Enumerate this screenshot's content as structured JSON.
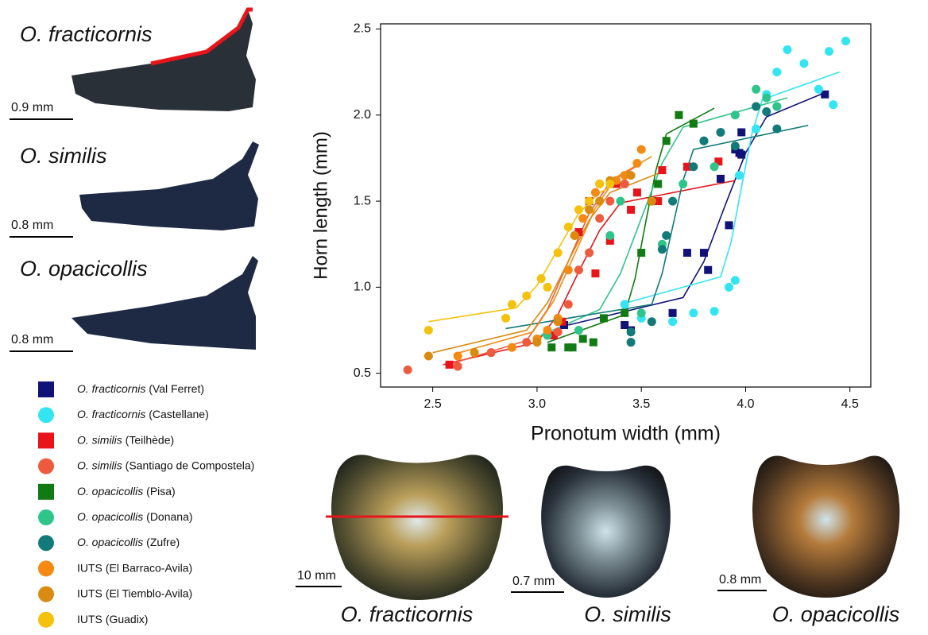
{
  "chart_data": {
    "type": "scatter",
    "xlabel": "Pronotum width (mm)",
    "ylabel": "Horn length (mm)",
    "xlim": [
      2.25,
      4.6
    ],
    "ylim": [
      0.42,
      2.53
    ],
    "xticks": [
      2.5,
      {
        "value": 3,
        "label": "3.0"
      },
      3.5,
      {
        "value": 4,
        "label": "4.0"
      },
      4.5
    ],
    "yticks": [
      {
        "value": 2.5,
        "label": "2.5"
      },
      {
        "value": 2,
        "label": "2.0"
      },
      {
        "value": 1.5,
        "label": "1.5"
      },
      {
        "value": 1,
        "label": "1.0"
      },
      {
        "value": 0.5,
        "label": "0.5"
      }
    ],
    "series": [
      {
        "name": "O. fracticornis",
        "site": "(Val Ferret)",
        "italic": true,
        "marker": "square",
        "color": "#10127a",
        "x": [
          3.13,
          3.42,
          3.45,
          3.65,
          3.72,
          3.8,
          3.82,
          3.88,
          3.92,
          3.95,
          3.97,
          3.98,
          4.38,
          3.98
        ],
        "values": [
          0.78,
          0.78,
          0.75,
          0.85,
          1.2,
          1.2,
          1.1,
          1.63,
          1.36,
          1.8,
          1.78,
          1.77,
          2.12,
          1.9
        ],
        "fit_x": [
          3.15,
          3.7,
          3.8,
          3.9,
          4.0,
          4.1,
          4.38
        ],
        "fit_values": [
          0.78,
          0.94,
          1.15,
          1.47,
          1.78,
          1.99,
          2.13
        ]
      },
      {
        "name": "O. fracticornis",
        "site": "(Castellane)",
        "italic": true,
        "marker": "circle",
        "color": "#33e5f0",
        "x": [
          3.42,
          3.5,
          3.65,
          3.75,
          3.85,
          3.92,
          3.95,
          3.97,
          4.05,
          4.1,
          4.15,
          4.2,
          4.28,
          4.35,
          4.4,
          4.42,
          4.48,
          4.15
        ],
        "values": [
          0.9,
          0.82,
          0.8,
          0.85,
          0.86,
          1.0,
          1.04,
          1.65,
          1.92,
          2.12,
          2.25,
          2.38,
          2.3,
          2.15,
          2.37,
          2.06,
          2.43,
          2.05
        ],
        "fit_x": [
          3.4,
          3.88,
          3.93,
          3.98,
          4.03,
          4.08,
          4.45
        ],
        "fit_values": [
          0.9,
          1.06,
          1.26,
          1.58,
          1.89,
          2.09,
          2.25
        ]
      },
      {
        "name": "O. similis",
        "site": "(Teilhède)",
        "italic": true,
        "marker": "square",
        "color": "#e8141a",
        "x": [
          2.58,
          3.08,
          3.12,
          3.2,
          3.25,
          3.28,
          3.35,
          3.38,
          3.45,
          3.48,
          3.6,
          3.72,
          3.87,
          3.58
        ],
        "values": [
          0.55,
          0.72,
          0.8,
          1.32,
          1.5,
          1.08,
          1.27,
          1.6,
          1.45,
          1.55,
          1.68,
          1.7,
          1.73,
          1.5
        ],
        "fit_x": [
          2.55,
          3.0,
          3.1,
          3.2,
          3.3,
          3.4,
          3.95
        ],
        "fit_values": [
          0.55,
          0.68,
          0.84,
          1.09,
          1.33,
          1.49,
          1.62
        ]
      },
      {
        "name": "O. similis",
        "site": "(Santiago de Compostela)",
        "italic": true,
        "marker": "circle",
        "color": "#ee5a3e",
        "x": [
          2.38,
          2.62,
          2.78,
          2.95,
          3.05,
          3.1,
          3.15,
          3.2,
          3.25,
          3.3,
          3.35,
          3.42
        ],
        "values": [
          0.52,
          0.54,
          0.62,
          0.68,
          0.72,
          0.74,
          0.9,
          1.1,
          1.2,
          1.4,
          1.5,
          1.6
        ],
        "fit_x": [
          2.6,
          2.95,
          3.05,
          3.15,
          3.25,
          3.35,
          3.5
        ],
        "fit_values": [
          0.56,
          0.69,
          0.87,
          1.15,
          1.43,
          1.61,
          1.72
        ]
      },
      {
        "name": "O. opacicollis",
        "site": "(Pisa)",
        "italic": true,
        "marker": "square",
        "color": "#127a12",
        "x": [
          3.07,
          3.15,
          3.17,
          3.22,
          3.27,
          3.32,
          3.42,
          3.5,
          3.55,
          3.58,
          3.62,
          3.68,
          3.75
        ],
        "values": [
          0.65,
          0.65,
          0.65,
          0.7,
          0.68,
          0.82,
          0.85,
          1.2,
          1.5,
          1.6,
          1.85,
          2.0,
          1.95
        ],
        "fit_x": [
          3.05,
          3.42,
          3.47,
          3.52,
          3.57,
          3.62,
          3.85
        ],
        "fit_values": [
          0.68,
          0.84,
          1.05,
          1.37,
          1.68,
          1.89,
          2.04
        ]
      },
      {
        "name": "O. opacicollis",
        "site": "(Donana)",
        "italic": true,
        "marker": "circle",
        "color": "#2fc48a",
        "x": [
          3.05,
          3.2,
          3.35,
          3.4,
          3.5,
          3.55,
          3.6,
          3.7,
          3.8,
          3.85,
          3.95,
          4.05,
          4.1,
          4.15
        ],
        "values": [
          0.72,
          0.75,
          1.3,
          1.5,
          0.85,
          1.5,
          1.25,
          1.6,
          1.85,
          1.7,
          2.0,
          2.15,
          2.1,
          2.05
        ],
        "fit_x": [
          3.0,
          3.3,
          3.4,
          3.5,
          3.6,
          3.7,
          4.2
        ],
        "fit_values": [
          0.71,
          0.87,
          1.08,
          1.4,
          1.72,
          1.93,
          2.1
        ]
      },
      {
        "name": "O. opacicollis",
        "site": "(Zufre)",
        "italic": true,
        "marker": "circle",
        "color": "#127a78",
        "x": [
          3.45,
          3.45,
          3.55,
          3.6,
          3.62,
          3.65,
          3.75,
          3.8,
          3.88,
          3.95,
          4.05,
          4.15,
          4.1
        ],
        "values": [
          0.68,
          0.74,
          0.8,
          1.22,
          1.3,
          1.5,
          1.7,
          1.85,
          1.9,
          1.82,
          2.05,
          1.92,
          2.02
        ],
        "fit_x": [
          2.85,
          3.55,
          3.6,
          3.65,
          3.7,
          3.75,
          4.3
        ],
        "fit_values": [
          0.76,
          0.9,
          1.08,
          1.35,
          1.62,
          1.8,
          1.94
        ]
      },
      {
        "name": "IUTS",
        "site": "(El Barraco-Avila)",
        "italic": false,
        "marker": "circle",
        "color": "#f58a12",
        "x": [
          2.62,
          2.88,
          3.0,
          3.05,
          3.1,
          3.15,
          3.18,
          3.22,
          3.28,
          3.3,
          3.38,
          3.42,
          3.48,
          3.5
        ],
        "values": [
          0.6,
          0.65,
          0.7,
          0.75,
          0.82,
          1.1,
          1.3,
          1.4,
          1.55,
          1.6,
          1.62,
          1.65,
          1.72,
          1.8
        ],
        "fit_x": [
          2.6,
          2.98,
          3.08,
          3.18,
          3.28,
          3.38,
          3.55
        ],
        "fit_values": [
          0.61,
          0.74,
          0.92,
          1.19,
          1.46,
          1.64,
          1.76
        ]
      },
      {
        "name": "IUTS",
        "site": "(El Tiemblo-Avila)",
        "italic": false,
        "marker": "circle",
        "color": "#d98a10",
        "x": [
          2.48,
          2.7,
          3.0,
          3.1,
          3.18,
          3.25,
          3.3,
          3.35,
          3.45,
          3.55
        ],
        "values": [
          0.6,
          0.62,
          0.68,
          0.8,
          1.3,
          1.45,
          1.5,
          1.62,
          1.65,
          1.5
        ],
        "fit_x": [
          2.5,
          2.95,
          3.05,
          3.15,
          3.25,
          3.35,
          3.6
        ],
        "fit_values": [
          0.62,
          0.75,
          0.91,
          1.15,
          1.39,
          1.55,
          1.67
        ]
      },
      {
        "name": "IUTS",
        "site": "(Guadix)",
        "italic": false,
        "marker": "circle",
        "color": "#f4c20d",
        "x": [
          2.48,
          2.85,
          2.88,
          2.95,
          3.02,
          3.05,
          3.1,
          3.15,
          3.2,
          3.25,
          3.3,
          3.35
        ],
        "values": [
          0.75,
          0.82,
          0.9,
          0.95,
          1.05,
          1.0,
          1.2,
          1.35,
          1.45,
          1.5,
          1.6,
          1.6
        ],
        "fit_x": [
          2.48,
          2.9,
          3.0,
          3.1,
          3.2,
          3.3,
          3.4
        ],
        "fit_values": [
          0.8,
          0.88,
          1.01,
          1.22,
          1.43,
          1.55,
          1.61
        ]
      }
    ]
  },
  "side_panels": [
    {
      "label": "O. fracticornis",
      "scale": "0.9 mm"
    },
    {
      "label": "O. similis",
      "scale": "0.8 mm"
    },
    {
      "label": "O. opacicollis",
      "scale": "0.8 mm"
    }
  ],
  "bottom_panels": [
    {
      "label": "O. fracticornis",
      "scale": "10 mm"
    },
    {
      "label": "O. similis",
      "scale": "0.7 mm"
    },
    {
      "label": "O. opacicollis",
      "scale": "0.8 mm"
    }
  ]
}
